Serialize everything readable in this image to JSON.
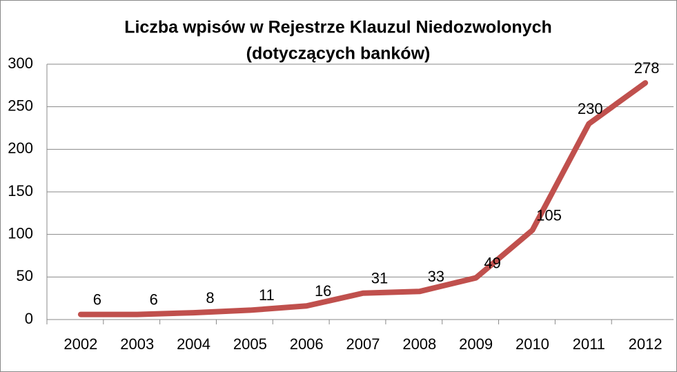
{
  "chart_data": {
    "type": "line",
    "title": [
      "Liczba wpisów w Rejestrze Klauzul Niedozwolonych",
      "(dotyczących banków)"
    ],
    "categories": [
      "2002",
      "2003",
      "2004",
      "2005",
      "2006",
      "2007",
      "2008",
      "2009",
      "2010",
      "2011",
      "2012"
    ],
    "values": [
      6,
      6,
      8,
      11,
      16,
      31,
      33,
      49,
      105,
      230,
      278
    ],
    "color": "#c0504d",
    "ylim": [
      0,
      300
    ],
    "yticks": [
      0,
      50,
      100,
      150,
      200,
      250,
      300
    ],
    "grid": true
  }
}
